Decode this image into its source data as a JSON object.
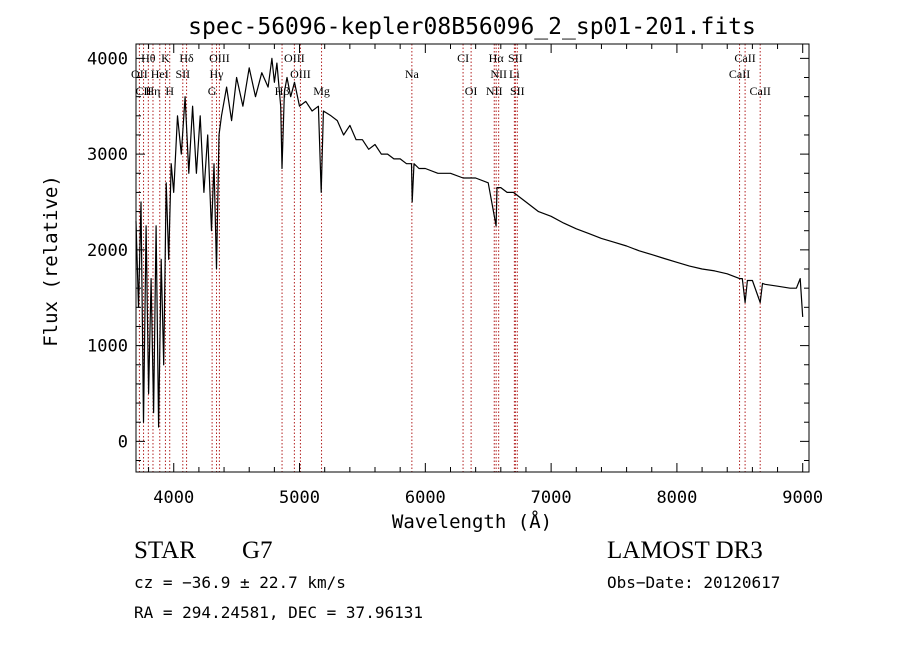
{
  "chart_data": {
    "type": "line",
    "title": "spec-56096-kepler08B56096_2_sp01-201.fits",
    "xlabel": "Wavelength (Å)",
    "ylabel": "Flux (relative)",
    "xlim": [
      3700,
      9050
    ],
    "ylim": [
      -320,
      4150
    ],
    "xticks": [
      4000,
      5000,
      6000,
      7000,
      8000,
      9000
    ],
    "yticks": [
      0,
      1000,
      2000,
      3000,
      4000
    ],
    "x_minor_step": 200,
    "y_minor_step": 200,
    "grid": false,
    "series": [
      {
        "name": "flux",
        "x": [
          3700,
          3720,
          3740,
          3760,
          3780,
          3800,
          3820,
          3840,
          3860,
          3880,
          3900,
          3920,
          3940,
          3960,
          3980,
          4000,
          4030,
          4060,
          4090,
          4120,
          4150,
          4180,
          4210,
          4240,
          4270,
          4300,
          4320,
          4340,
          4360,
          4380,
          4420,
          4460,
          4500,
          4550,
          4600,
          4650,
          4700,
          4750,
          4780,
          4800,
          4820,
          4850,
          4861,
          4880,
          4900,
          4930,
          4960,
          5000,
          5050,
          5100,
          5150,
          5172,
          5190,
          5250,
          5300,
          5350,
          5400,
          5450,
          5500,
          5550,
          5600,
          5650,
          5700,
          5750,
          5800,
          5850,
          5890,
          5896,
          5910,
          5950,
          6000,
          6100,
          6200,
          6300,
          6400,
          6500,
          6563,
          6570,
          6600,
          6650,
          6700,
          6800,
          6900,
          7000,
          7100,
          7200,
          7300,
          7400,
          7500,
          7600,
          7700,
          7800,
          7900,
          8000,
          8100,
          8200,
          8300,
          8400,
          8498,
          8520,
          8542,
          8560,
          8600,
          8662,
          8680,
          8700,
          8800,
          8900,
          8950,
          8980,
          9000
        ],
        "values": [
          2300,
          1400,
          2500,
          200,
          2250,
          500,
          1700,
          300,
          2250,
          150,
          1900,
          800,
          2700,
          1900,
          2900,
          2600,
          3400,
          3000,
          3600,
          2800,
          3500,
          2800,
          3400,
          2600,
          3200,
          2200,
          2900,
          1800,
          3200,
          3400,
          3700,
          3350,
          3800,
          3500,
          3900,
          3600,
          3850,
          3700,
          4000,
          3750,
          3950,
          3500,
          2850,
          3650,
          3800,
          3600,
          3750,
          3500,
          3550,
          3450,
          3500,
          2600,
          3450,
          3400,
          3350,
          3200,
          3300,
          3150,
          3150,
          3050,
          3100,
          3000,
          3000,
          2950,
          2950,
          2900,
          2900,
          2500,
          2900,
          2850,
          2850,
          2800,
          2800,
          2750,
          2750,
          2700,
          2250,
          2650,
          2650,
          2600,
          2600,
          2500,
          2400,
          2350,
          2280,
          2220,
          2170,
          2120,
          2080,
          2040,
          1990,
          1950,
          1910,
          1870,
          1830,
          1800,
          1780,
          1750,
          1700,
          1700,
          1450,
          1680,
          1680,
          1450,
          1650,
          1640,
          1620,
          1600,
          1600,
          1700,
          1300
        ]
      }
    ],
    "line_markers": [
      {
        "label": "Hθ",
        "x": 3798,
        "row": 0
      },
      {
        "label": "K",
        "x": 3934,
        "row": 0
      },
      {
        "label": "Hδ",
        "x": 4102,
        "row": 0
      },
      {
        "label": "OIII",
        "x": 4363,
        "row": 0
      },
      {
        "label": "OIII",
        "x": 4959,
        "row": 0
      },
      {
        "label": "CI",
        "x": 6300,
        "row": 0
      },
      {
        "label": "Hα",
        "x": 6563,
        "row": 0
      },
      {
        "label": "SII",
        "x": 6716,
        "row": 0
      },
      {
        "label": "CaII",
        "x": 8542,
        "row": 0
      },
      {
        "label": "OII",
        "x": 3727,
        "row": 1
      },
      {
        "label": "HeI",
        "x": 3889,
        "row": 1
      },
      {
        "label": "SII",
        "x": 4072,
        "row": 1
      },
      {
        "label": "Hγ",
        "x": 4340,
        "row": 1
      },
      {
        "label": "OIII",
        "x": 5007,
        "row": 1
      },
      {
        "label": "Na",
        "x": 5893,
        "row": 1
      },
      {
        "label": "NII",
        "x": 6583,
        "row": 1
      },
      {
        "label": "Li",
        "x": 6708,
        "row": 1
      },
      {
        "label": "CaII",
        "x": 8498,
        "row": 1
      },
      {
        "label": "CII",
        "x": 3760,
        "row": 2
      },
      {
        "label": "Hη",
        "x": 3835,
        "row": 2
      },
      {
        "label": "H",
        "x": 3968,
        "row": 2
      },
      {
        "label": "G",
        "x": 4305,
        "row": 2
      },
      {
        "label": "Hβ",
        "x": 4861,
        "row": 2
      },
      {
        "label": "Mg",
        "x": 5175,
        "row": 2
      },
      {
        "label": "OI",
        "x": 6364,
        "row": 2
      },
      {
        "label": "NII",
        "x": 6548,
        "row": 2
      },
      {
        "label": "SII",
        "x": 6731,
        "row": 2
      },
      {
        "label": "CaII",
        "x": 8662,
        "row": 2
      }
    ],
    "marker_color": "#b22222"
  },
  "info": {
    "object_class": "STAR",
    "subclass": "G7",
    "survey": "LAMOST DR3",
    "cz": "cz = −36.9 ± 22.7 km/s",
    "obs_date": "Obs−Date: 20120617",
    "coords": "RA = 294.24581, DEC =  37.96131"
  }
}
